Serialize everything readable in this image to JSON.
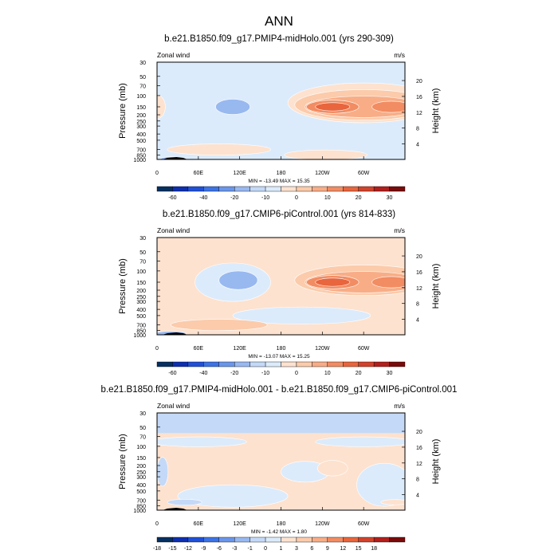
{
  "page_title": "ANN",
  "chart_data": [
    {
      "type": "heatmap",
      "title": "b.e21.B1850.f09_g17.PMIP4-midHolo.001 (yrs 290-309)",
      "variable_label": "Zonal wind",
      "units_label": "m/s",
      "ylabel": "Pressure (mb)",
      "y2label": "Height (km)",
      "pressure_ticks": [
        "30",
        "50",
        "70",
        "100",
        "150",
        "200",
        "250",
        "300",
        "400",
        "500",
        "700",
        "850",
        "1000"
      ],
      "height_ticks": [
        "20",
        "16",
        "12",
        "8",
        "4"
      ],
      "lon_ticks": [
        "0",
        "60E",
        "120E",
        "180",
        "120W",
        "60W"
      ],
      "stats_text": "MIN = -13.49  MAX =  15.35",
      "colorbar_labels": [
        "-60",
        "-40",
        "-20",
        "-10",
        "0",
        "10",
        "20",
        "30"
      ],
      "colorbar_colors": [
        "#053061",
        "#0d2fb0",
        "#2050d8",
        "#3c73e6",
        "#6a96ea",
        "#98b8f0",
        "#c4d9f7",
        "#dcebfb",
        "#fde2cf",
        "#fbcbab",
        "#f8ad86",
        "#f28c62",
        "#e8653d",
        "#d2422b",
        "#b21f1c",
        "#7a0a0a"
      ],
      "field": {
        "background": "#dcebfb",
        "features": [
          {
            "kind": "ellipse",
            "lon": 300,
            "lev": 130,
            "rlon": 110,
            "rlev": 80,
            "color": "#fde2cf"
          },
          {
            "kind": "ellipse",
            "lon": 300,
            "lev": 140,
            "rlon": 100,
            "rlev": 70,
            "color": "#fbcbab"
          },
          {
            "kind": "ellipse",
            "lon": 300,
            "lev": 150,
            "rlon": 85,
            "rlev": 55,
            "color": "#f8ad86"
          },
          {
            "kind": "ellipse",
            "lon": 255,
            "lev": 150,
            "rlon": 38,
            "rlev": 35,
            "color": "#f28c62"
          },
          {
            "kind": "ellipse",
            "lon": 340,
            "lev": 150,
            "rlon": 28,
            "rlev": 30,
            "color": "#f28c62"
          },
          {
            "kind": "ellipse",
            "lon": 255,
            "lev": 150,
            "rlon": 25,
            "rlev": 22,
            "color": "#e8653d"
          },
          {
            "kind": "ellipse",
            "lon": 0,
            "lev": 150,
            "rlon": 12,
            "rlev": 60,
            "color": "#fde2cf"
          },
          {
            "kind": "ellipse",
            "lon": 110,
            "lev": 150,
            "rlon": 25,
            "rlev": 40,
            "color": "#98b8f0"
          },
          {
            "kind": "ellipse",
            "lon": 90,
            "lev": 700,
            "rlon": 75,
            "rlev": 140,
            "color": "#fde2cf"
          },
          {
            "kind": "ellipse",
            "lon": 245,
            "lev": 850,
            "rlon": 60,
            "rlev": 150,
            "color": "#fde2cf"
          },
          {
            "kind": "ellipse",
            "lon": 20,
            "lev": 990,
            "rlon": 15,
            "rlev": 20,
            "color": "#98b8f0"
          }
        ]
      }
    },
    {
      "type": "heatmap",
      "title": "b.e21.B1850.f09_g17.CMIP6-piControl.001 (yrs 814-833)",
      "variable_label": "Zonal wind",
      "units_label": "m/s",
      "ylabel": "Pressure (mb)",
      "y2label": "Height (km)",
      "pressure_ticks": [
        "30",
        "50",
        "70",
        "100",
        "150",
        "200",
        "250",
        "300",
        "400",
        "500",
        "700",
        "850",
        "1000"
      ],
      "height_ticks": [
        "20",
        "16",
        "12",
        "8",
        "4"
      ],
      "lon_ticks": [
        "0",
        "60E",
        "120E",
        "180",
        "120W",
        "60W"
      ],
      "stats_text": "MIN = -13.07  MAX =  15.25",
      "colorbar_labels": [
        "-60",
        "-40",
        "-20",
        "-10",
        "0",
        "10",
        "20",
        "30"
      ],
      "colorbar_colors": [
        "#053061",
        "#0d2fb0",
        "#2050d8",
        "#3c73e6",
        "#6a96ea",
        "#98b8f0",
        "#c4d9f7",
        "#dcebfb",
        "#fde2cf",
        "#fbcbab",
        "#f8ad86",
        "#f28c62",
        "#e8653d",
        "#d2422b",
        "#b21f1c",
        "#7a0a0a"
      ],
      "field": {
        "background": "#fde2cf",
        "features": [
          {
            "kind": "ellipse",
            "lon": 110,
            "lev": 150,
            "rlon": 55,
            "rlev": 90,
            "color": "#dcebfb"
          },
          {
            "kind": "ellipse",
            "lon": 118,
            "lev": 140,
            "rlon": 28,
            "rlev": 45,
            "color": "#98b8f0"
          },
          {
            "kind": "ellipse",
            "lon": 300,
            "lev": 140,
            "rlon": 100,
            "rlev": 70,
            "color": "#fbcbab"
          },
          {
            "kind": "ellipse",
            "lon": 300,
            "lev": 150,
            "rlon": 85,
            "rlev": 55,
            "color": "#f8ad86"
          },
          {
            "kind": "ellipse",
            "lon": 255,
            "lev": 150,
            "rlon": 38,
            "rlev": 35,
            "color": "#f28c62"
          },
          {
            "kind": "ellipse",
            "lon": 340,
            "lev": 150,
            "rlon": 28,
            "rlev": 30,
            "color": "#f28c62"
          },
          {
            "kind": "ellipse",
            "lon": 255,
            "lev": 150,
            "rlon": 25,
            "rlev": 22,
            "color": "#e8653d"
          },
          {
            "kind": "ellipse",
            "lon": 210,
            "lev": 500,
            "rlon": 100,
            "rlev": 150,
            "color": "#dcebfb"
          },
          {
            "kind": "ellipse",
            "lon": 90,
            "lev": 700,
            "rlon": 70,
            "rlev": 140,
            "color": "#fbcbab"
          },
          {
            "kind": "ellipse",
            "lon": 20,
            "lev": 960,
            "rlon": 22,
            "rlev": 60,
            "color": "#98b8f0"
          }
        ]
      }
    },
    {
      "type": "heatmap",
      "title": "b.e21.B1850.f09_g17.PMIP4-midHolo.001 - b.e21.B1850.f09_g17.CMIP6-piControl.001",
      "variable_label": "Zonal wind",
      "units_label": "m/s",
      "ylabel": "Pressure (mb)",
      "y2label": "Height (km)",
      "pressure_ticks": [
        "30",
        "50",
        "70",
        "100",
        "150",
        "200",
        "250",
        "300",
        "400",
        "500",
        "700",
        "850",
        "1000"
      ],
      "height_ticks": [
        "20",
        "16",
        "12",
        "8",
        "4"
      ],
      "lon_ticks": [
        "0",
        "60E",
        "120E",
        "180",
        "120W",
        "60W"
      ],
      "stats_text": "MIN =  -1.42  MAX =   1.80",
      "colorbar_labels": [
        "-18",
        "-15",
        "-12",
        "-9",
        "-6",
        "-3",
        "-1",
        "0",
        "1",
        "3",
        "6",
        "9",
        "12",
        "15",
        "18"
      ],
      "colorbar_colors": [
        "#053061",
        "#0d2fb0",
        "#2050d8",
        "#3c73e6",
        "#6a96ea",
        "#98b8f0",
        "#c4d9f7",
        "#dcebfb",
        "#fde2cf",
        "#fbcbab",
        "#f8ad86",
        "#f28c62",
        "#e8653d",
        "#d2422b",
        "#b21f1c",
        "#7a0a0a"
      ],
      "field": {
        "background": "#fde2cf",
        "features": [
          {
            "kind": "band",
            "lev_top": 30,
            "lev_bottom": 62,
            "color": "#c4d9f7"
          },
          {
            "kind": "ellipse",
            "lon": 60,
            "lev": 85,
            "rlon": 70,
            "rlev": 15,
            "color": "#dcebfb"
          },
          {
            "kind": "ellipse",
            "lon": 300,
            "lev": 85,
            "rlon": 70,
            "rlev": 15,
            "color": "#dcebfb"
          },
          {
            "kind": "ellipse",
            "lon": 110,
            "lev": 600,
            "rlon": 80,
            "rlev": 230,
            "color": "#dcebfb"
          },
          {
            "kind": "ellipse",
            "lon": 215,
            "lev": 250,
            "rlon": 35,
            "rlev": 90,
            "color": "#dcebfb"
          },
          {
            "kind": "ellipse",
            "lon": 330,
            "lev": 400,
            "rlon": 40,
            "rlev": 260,
            "color": "#dcebfb"
          },
          {
            "kind": "ellipse",
            "lon": 8,
            "lev": 250,
            "rlon": 8,
            "rlev": 120,
            "color": "#c4d9f7"
          },
          {
            "kind": "ellipse",
            "lon": 255,
            "lev": 220,
            "rlon": 22,
            "rlev": 60,
            "color": "#fde2cf"
          },
          {
            "kind": "ellipse",
            "lon": 40,
            "lev": 750,
            "rlon": 25,
            "rlev": 80,
            "color": "#c4d9f7"
          },
          {
            "kind": "ellipse",
            "lon": 345,
            "lev": 750,
            "rlon": 20,
            "rlev": 70,
            "color": "#fde2cf"
          }
        ]
      }
    }
  ]
}
